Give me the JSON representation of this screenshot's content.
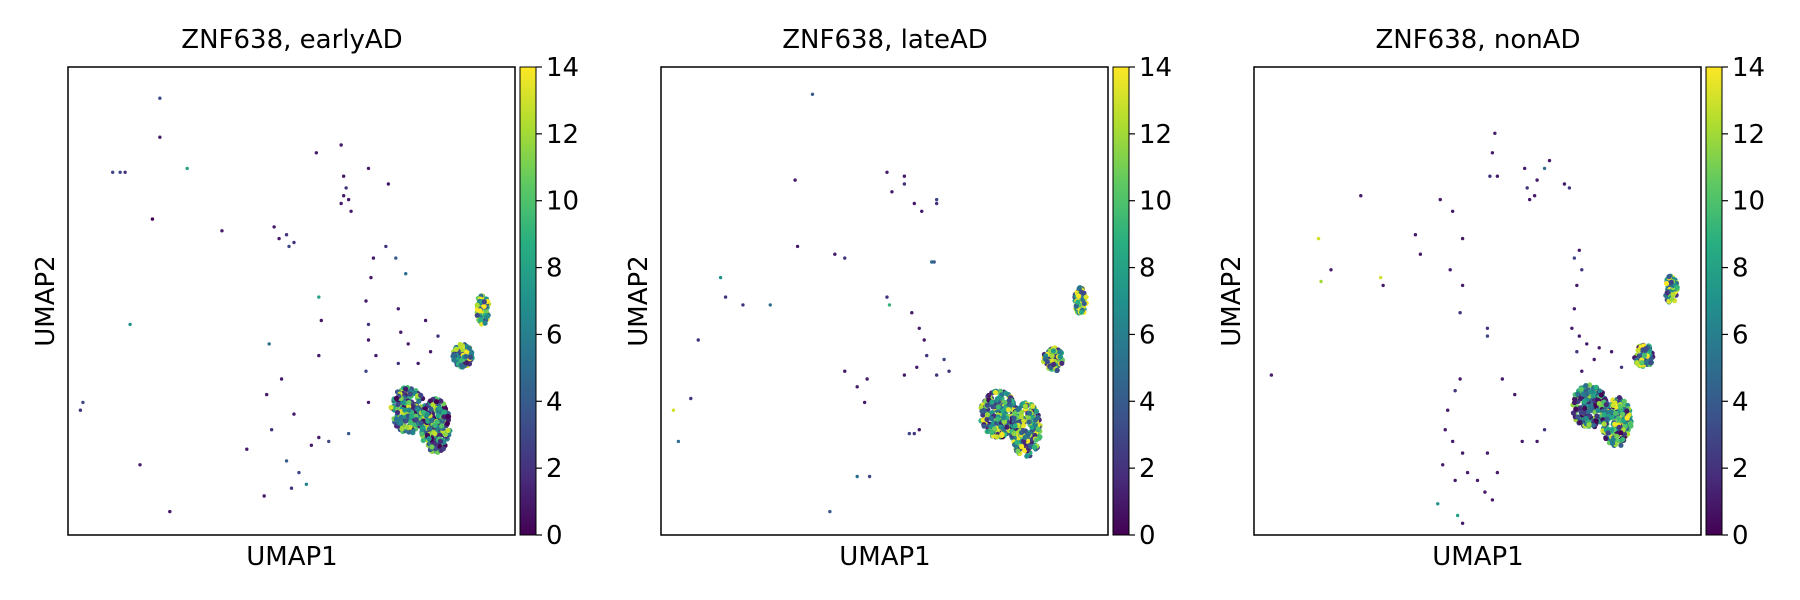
{
  "chart_data": [
    {
      "type": "scatter",
      "title": "ZNF638, earlyAD",
      "xlabel": "UMAP1",
      "ylabel": "UMAP2",
      "colorbar": {
        "range": [
          0,
          14
        ],
        "ticks": [
          0,
          2,
          4,
          6,
          8,
          10,
          12,
          14
        ],
        "colormap": "viridis"
      },
      "clusters": [
        {
          "x": 6.2,
          "y": 3.2,
          "rx": 0.7,
          "ry": 0.6,
          "n": 240,
          "mean": 6.5
        },
        {
          "x": 7.3,
          "y": 2.8,
          "rx": 0.6,
          "ry": 0.7,
          "n": 220,
          "mean": 6
        },
        {
          "x": 8.4,
          "y": 4.6,
          "rx": 0.4,
          "ry": 0.3,
          "n": 110,
          "mean": 8
        },
        {
          "x": 9.2,
          "y": 5.8,
          "rx": 0.25,
          "ry": 0.4,
          "n": 80,
          "mean": 9.5
        }
      ],
      "points": [
        {
          "x": -6.9,
          "y": 3.4,
          "v": 3
        },
        {
          "x": -7,
          "y": 3.2,
          "v": 2
        },
        {
          "x": -5.7,
          "y": 9.3,
          "v": 3
        },
        {
          "x": -5.4,
          "y": 9.3,
          "v": 3
        },
        {
          "x": -5.2,
          "y": 9.3,
          "v": 2
        },
        {
          "x": -4.6,
          "y": 1.8,
          "v": 1
        },
        {
          "x": -5,
          "y": 5.4,
          "v": 7
        },
        {
          "x": -3.8,
          "y": 11.2,
          "v": 3
        },
        {
          "x": -3.8,
          "y": 10.2,
          "v": 1
        },
        {
          "x": -4.1,
          "y": 8.1,
          "v": 0
        },
        {
          "x": -2.7,
          "y": 9.4,
          "v": 8
        },
        {
          "x": -1.3,
          "y": 7.8,
          "v": 1
        },
        {
          "x": -3.4,
          "y": 0.6,
          "v": 1
        },
        {
          "x": 0.8,
          "y": 7.9,
          "v": 1
        },
        {
          "x": 1,
          "y": 7.6,
          "v": 1
        },
        {
          "x": 1.3,
          "y": 7.7,
          "v": 2
        },
        {
          "x": 1.4,
          "y": 7.4,
          "v": 3
        },
        {
          "x": 1.6,
          "y": 7.5,
          "v": 2
        },
        {
          "x": 0.6,
          "y": 4.9,
          "v": 5
        },
        {
          "x": 1.1,
          "y": 4,
          "v": 1
        },
        {
          "x": 0.5,
          "y": 3.6,
          "v": 1
        },
        {
          "x": -0.3,
          "y": 2.2,
          "v": 1
        },
        {
          "x": 0.7,
          "y": 2.7,
          "v": 2
        },
        {
          "x": 1.6,
          "y": 3.1,
          "v": 1
        },
        {
          "x": 1.3,
          "y": 1.9,
          "v": 4
        },
        {
          "x": 1.8,
          "y": 1.6,
          "v": 3
        },
        {
          "x": 2.1,
          "y": 1.3,
          "v": 6
        },
        {
          "x": 1.5,
          "y": 1.2,
          "v": 2
        },
        {
          "x": 0.4,
          "y": 1,
          "v": 1
        },
        {
          "x": 2.6,
          "y": 6.1,
          "v": 8
        },
        {
          "x": 2.7,
          "y": 5.5,
          "v": 1
        },
        {
          "x": 2.6,
          "y": 4.6,
          "v": 1
        },
        {
          "x": 3.5,
          "y": 10,
          "v": 1
        },
        {
          "x": 2.5,
          "y": 9.8,
          "v": 1
        },
        {
          "x": 3.6,
          "y": 9.2,
          "v": 1
        },
        {
          "x": 3.6,
          "y": 8.7,
          "v": 1
        },
        {
          "x": 3.7,
          "y": 8.9,
          "v": 2
        },
        {
          "x": 3.8,
          "y": 8.6,
          "v": 1
        },
        {
          "x": 3.5,
          "y": 8.5,
          "v": 1
        },
        {
          "x": 3.9,
          "y": 8.3,
          "v": 1
        },
        {
          "x": 4.6,
          "y": 9.4,
          "v": 1
        },
        {
          "x": 5.4,
          "y": 9,
          "v": 1
        },
        {
          "x": 4.8,
          "y": 7.1,
          "v": 1
        },
        {
          "x": 5.3,
          "y": 7.4,
          "v": 2
        },
        {
          "x": 5.7,
          "y": 7.1,
          "v": 4
        },
        {
          "x": 4.7,
          "y": 6.6,
          "v": 1
        },
        {
          "x": 4.5,
          "y": 6,
          "v": 1
        },
        {
          "x": 4.6,
          "y": 5.4,
          "v": 2
        },
        {
          "x": 4.6,
          "y": 5,
          "v": 1
        },
        {
          "x": 4.9,
          "y": 4.6,
          "v": 1
        },
        {
          "x": 4.5,
          "y": 4.2,
          "v": 3
        },
        {
          "x": 6.1,
          "y": 6.7,
          "v": 5
        },
        {
          "x": 5.8,
          "y": 5.8,
          "v": 1
        },
        {
          "x": 3,
          "y": 2.4,
          "v": 3
        },
        {
          "x": 2.6,
          "y": 2.5,
          "v": 1
        },
        {
          "x": 2.3,
          "y": 2.3,
          "v": 1
        },
        {
          "x": 3.8,
          "y": 2.6,
          "v": 4
        },
        {
          "x": 4.6,
          "y": 3.4,
          "v": 1
        },
        {
          "x": 5.8,
          "y": 4.4,
          "v": 2
        },
        {
          "x": 6.2,
          "y": 4.9,
          "v": 1
        },
        {
          "x": 5.9,
          "y": 5.2,
          "v": 1
        },
        {
          "x": 6.6,
          "y": 4.4,
          "v": 1
        },
        {
          "x": 7.1,
          "y": 4.7,
          "v": 1
        },
        {
          "x": 6.9,
          "y": 5.5,
          "v": 1
        },
        {
          "x": 7.4,
          "y": 5.1,
          "v": 2
        }
      ]
    },
    {
      "type": "scatter",
      "title": "ZNF638, lateAD",
      "xlabel": "UMAP1",
      "ylabel": "UMAP2",
      "colorbar": {
        "range": [
          0,
          14
        ],
        "ticks": [
          0,
          2,
          4,
          6,
          8,
          10,
          12,
          14
        ],
        "colormap": "viridis"
      },
      "clusters": [
        {
          "x": 6.1,
          "y": 3.1,
          "rx": 0.75,
          "ry": 0.6,
          "n": 240,
          "mean": 7
        },
        {
          "x": 7.2,
          "y": 2.7,
          "rx": 0.6,
          "ry": 0.7,
          "n": 220,
          "mean": 7.5
        },
        {
          "x": 8.3,
          "y": 4.5,
          "rx": 0.4,
          "ry": 0.3,
          "n": 90,
          "mean": 7.5
        },
        {
          "x": 9.4,
          "y": 6,
          "rx": 0.25,
          "ry": 0.35,
          "n": 70,
          "mean": 10
        }
      ],
      "points": [
        {
          "x": -7,
          "y": 3.2,
          "v": 13
        },
        {
          "x": -6.8,
          "y": 2.4,
          "v": 5
        },
        {
          "x": -6.3,
          "y": 3.5,
          "v": 2
        },
        {
          "x": -6,
          "y": 5,
          "v": 2
        },
        {
          "x": -5.1,
          "y": 6.6,
          "v": 7
        },
        {
          "x": -4.9,
          "y": 6.1,
          "v": 2
        },
        {
          "x": -4.2,
          "y": 5.9,
          "v": 2
        },
        {
          "x": -3.1,
          "y": 5.9,
          "v": 5
        },
        {
          "x": -1.4,
          "y": 11.3,
          "v": 4
        },
        {
          "x": -2.1,
          "y": 9.1,
          "v": 1
        },
        {
          "x": -2,
          "y": 7.4,
          "v": 1
        },
        {
          "x": -0.5,
          "y": 7.2,
          "v": 1
        },
        {
          "x": -0.1,
          "y": 7.1,
          "v": 2
        },
        {
          "x": 1.6,
          "y": 9.3,
          "v": 1
        },
        {
          "x": 2.3,
          "y": 9,
          "v": 2
        },
        {
          "x": 2.3,
          "y": 9.2,
          "v": 1
        },
        {
          "x": 1.8,
          "y": 8.8,
          "v": 1
        },
        {
          "x": 2.7,
          "y": 8.5,
          "v": 1
        },
        {
          "x": 3,
          "y": 8.3,
          "v": 1
        },
        {
          "x": 3.6,
          "y": 8.6,
          "v": 3
        },
        {
          "x": 3.6,
          "y": 8.5,
          "v": 2
        },
        {
          "x": -0.1,
          "y": 4.2,
          "v": 1
        },
        {
          "x": 0.4,
          "y": 3.8,
          "v": 1
        },
        {
          "x": 0.8,
          "y": 4,
          "v": 1
        },
        {
          "x": 0.7,
          "y": 3.4,
          "v": 1
        },
        {
          "x": 0.4,
          "y": 1.5,
          "v": 5
        },
        {
          "x": 0.9,
          "y": 1.5,
          "v": 3
        },
        {
          "x": -0.7,
          "y": 0.6,
          "v": 4
        },
        {
          "x": 1.7,
          "y": 5.9,
          "v": 9
        },
        {
          "x": 1.6,
          "y": 6.1,
          "v": 2
        },
        {
          "x": 3.4,
          "y": 7,
          "v": 5
        },
        {
          "x": 3.5,
          "y": 7,
          "v": 4
        },
        {
          "x": 2.6,
          "y": 5.7,
          "v": 1
        },
        {
          "x": 2.9,
          "y": 5.3,
          "v": 1
        },
        {
          "x": 3.1,
          "y": 5,
          "v": 1
        },
        {
          "x": 3.2,
          "y": 4.6,
          "v": 2
        },
        {
          "x": 2.8,
          "y": 4.3,
          "v": 1
        },
        {
          "x": 2.3,
          "y": 4.1,
          "v": 1
        },
        {
          "x": 3.6,
          "y": 4.1,
          "v": 2
        },
        {
          "x": 3.9,
          "y": 4.5,
          "v": 3
        },
        {
          "x": 4.1,
          "y": 4.2,
          "v": 2
        },
        {
          "x": 2.5,
          "y": 2.6,
          "v": 3
        },
        {
          "x": 2.7,
          "y": 2.6,
          "v": 2
        },
        {
          "x": 2.9,
          "y": 2.7,
          "v": 1
        }
      ]
    },
    {
      "type": "scatter",
      "title": "ZNF638, nonAD",
      "xlabel": "UMAP1",
      "ylabel": "UMAP2",
      "colorbar": {
        "range": [
          0,
          14
        ],
        "ticks": [
          0,
          2,
          4,
          6,
          8,
          10,
          12,
          14
        ],
        "colormap": "viridis"
      },
      "clusters": [
        {
          "x": 6,
          "y": 3.3,
          "rx": 0.7,
          "ry": 0.55,
          "n": 220,
          "mean": 6
        },
        {
          "x": 7.1,
          "y": 2.9,
          "rx": 0.6,
          "ry": 0.65,
          "n": 200,
          "mean": 7
        },
        {
          "x": 8.2,
          "y": 4.6,
          "rx": 0.4,
          "ry": 0.3,
          "n": 90,
          "mean": 8
        },
        {
          "x": 9.3,
          "y": 6.3,
          "rx": 0.25,
          "ry": 0.35,
          "n": 70,
          "mean": 9
        }
      ],
      "points": [
        {
          "x": -6.8,
          "y": 4.1,
          "v": 1
        },
        {
          "x": -4.9,
          "y": 7.6,
          "v": 13
        },
        {
          "x": -4.8,
          "y": 6.5,
          "v": 12
        },
        {
          "x": -4.4,
          "y": 6.8,
          "v": 1
        },
        {
          "x": -3.2,
          "y": 8.7,
          "v": 1
        },
        {
          "x": -2.4,
          "y": 6.6,
          "v": 13
        },
        {
          "x": -2.3,
          "y": 6.4,
          "v": 1
        },
        {
          "x": -1,
          "y": 7.7,
          "v": 1
        },
        {
          "x": -0.8,
          "y": 7.2,
          "v": 1
        },
        {
          "x": 0,
          "y": 8.6,
          "v": 1
        },
        {
          "x": 0.5,
          "y": 8.3,
          "v": 1
        },
        {
          "x": 0.9,
          "y": 7.6,
          "v": 1
        },
        {
          "x": 0.4,
          "y": 6.8,
          "v": 1
        },
        {
          "x": 0.9,
          "y": 6.4,
          "v": 1
        },
        {
          "x": 0.8,
          "y": 5.7,
          "v": 2
        },
        {
          "x": 1.9,
          "y": 5.1,
          "v": 3
        },
        {
          "x": 1.9,
          "y": 5.3,
          "v": 2
        },
        {
          "x": 2.2,
          "y": 10.3,
          "v": 1
        },
        {
          "x": 2.1,
          "y": 9.8,
          "v": 1
        },
        {
          "x": 2,
          "y": 9.2,
          "v": 2
        },
        {
          "x": 2.3,
          "y": 9.2,
          "v": 1
        },
        {
          "x": 3.4,
          "y": 9.4,
          "v": 1
        },
        {
          "x": 3.5,
          "y": 8.9,
          "v": 2
        },
        {
          "x": 3.6,
          "y": 8.6,
          "v": 1
        },
        {
          "x": 3.8,
          "y": 8.7,
          "v": 1
        },
        {
          "x": 3.9,
          "y": 9.1,
          "v": 1
        },
        {
          "x": 4.2,
          "y": 9.4,
          "v": 5
        },
        {
          "x": 4.4,
          "y": 9.6,
          "v": 1
        },
        {
          "x": 5,
          "y": 9,
          "v": 1
        },
        {
          "x": 5.2,
          "y": 8.9,
          "v": 2
        },
        {
          "x": 0.8,
          "y": 4,
          "v": 1
        },
        {
          "x": 0.6,
          "y": 3.7,
          "v": 2
        },
        {
          "x": 0.3,
          "y": 3.2,
          "v": 1
        },
        {
          "x": 0.2,
          "y": 2.7,
          "v": 1
        },
        {
          "x": 0.5,
          "y": 2.4,
          "v": 1
        },
        {
          "x": 0.9,
          "y": 2.1,
          "v": 1
        },
        {
          "x": 1.1,
          "y": 1.6,
          "v": 1
        },
        {
          "x": 0.6,
          "y": 1.4,
          "v": 1
        },
        {
          "x": 0.1,
          "y": 1.8,
          "v": 1
        },
        {
          "x": -0.1,
          "y": 0.8,
          "v": 7
        },
        {
          "x": 0.7,
          "y": 0.5,
          "v": 8
        },
        {
          "x": 0.9,
          "y": 0.3,
          "v": 1
        },
        {
          "x": 1.5,
          "y": 1.4,
          "v": 1
        },
        {
          "x": 1.8,
          "y": 1.1,
          "v": 1
        },
        {
          "x": 2.1,
          "y": 0.9,
          "v": 1
        },
        {
          "x": 2.3,
          "y": 1.6,
          "v": 1
        },
        {
          "x": 1.9,
          "y": 2.1,
          "v": 1
        },
        {
          "x": 2.5,
          "y": 4,
          "v": 1
        },
        {
          "x": 3,
          "y": 3.6,
          "v": 1
        },
        {
          "x": 3.3,
          "y": 2.4,
          "v": 1
        },
        {
          "x": 3.9,
          "y": 2.4,
          "v": 1
        },
        {
          "x": 4.2,
          "y": 2.7,
          "v": 2
        },
        {
          "x": 5.4,
          "y": 7.1,
          "v": 3
        },
        {
          "x": 5.6,
          "y": 7.3,
          "v": 1
        },
        {
          "x": 5.7,
          "y": 6.8,
          "v": 2
        },
        {
          "x": 5.5,
          "y": 6.4,
          "v": 1
        },
        {
          "x": 5.4,
          "y": 5.8,
          "v": 1
        },
        {
          "x": 5.3,
          "y": 5.3,
          "v": 1
        },
        {
          "x": 5.6,
          "y": 5.1,
          "v": 1
        },
        {
          "x": 5.5,
          "y": 4.7,
          "v": 2
        },
        {
          "x": 5.9,
          "y": 4.9,
          "v": 1
        },
        {
          "x": 6.2,
          "y": 4.5,
          "v": 1
        },
        {
          "x": 6.4,
          "y": 4.8,
          "v": 1
        },
        {
          "x": 6.9,
          "y": 4.7,
          "v": 1
        },
        {
          "x": 7.3,
          "y": 4.3,
          "v": 2
        },
        {
          "x": 5.7,
          "y": 4.2,
          "v": 1
        }
      ]
    }
  ]
}
